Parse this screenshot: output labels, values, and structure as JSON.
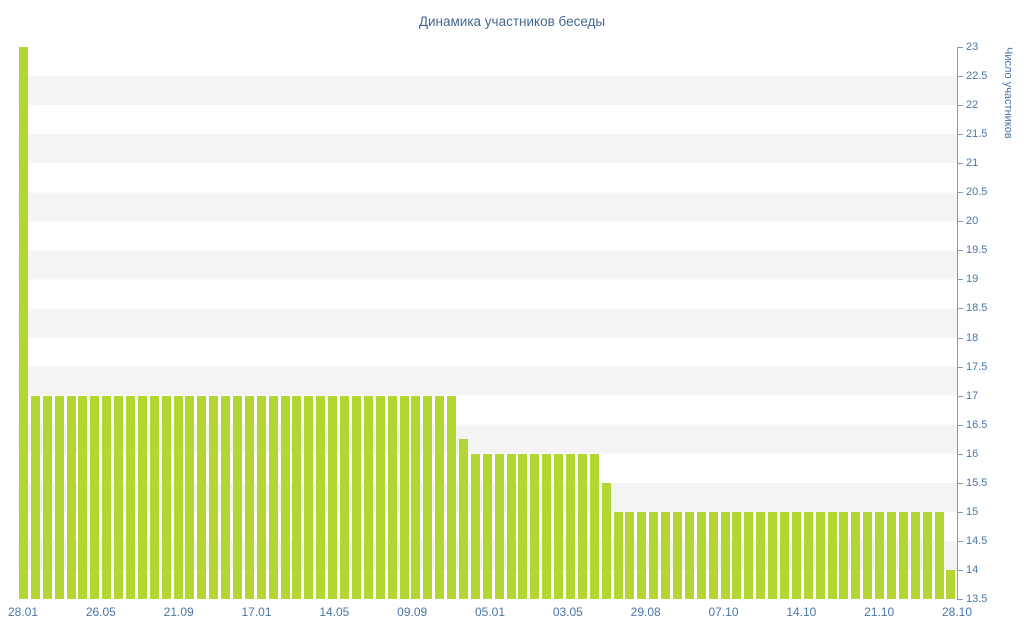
{
  "page": {
    "background": "#ffffff"
  },
  "chart_data": {
    "type": "bar",
    "title": "Динамика участников беседы",
    "ylabel": "Число участников",
    "xlabel": "",
    "legend_position": "none",
    "grid": "horizontal-stripes",
    "ylim": [
      13.5,
      23
    ],
    "y_tick_step": 0.5,
    "y_tick_labels": [
      "23",
      "22.5",
      "22",
      "21.5",
      "21",
      "20.5",
      "20",
      "19.5",
      "19",
      "18.5",
      "18",
      "17.5",
      "17",
      "16.5",
      "16",
      "15.5",
      "15",
      "14.5",
      "14",
      "13.5"
    ],
    "x_tick_labels": [
      "28.01",
      "26.05",
      "21.09",
      "17.01",
      "14.05",
      "09.09",
      "05.01",
      "03.05",
      "29.08",
      "07.10",
      "14.10",
      "21.10",
      "28.10"
    ],
    "values": [
      23,
      17,
      17,
      17,
      17,
      17,
      17,
      17,
      17,
      17,
      17,
      17,
      17,
      17,
      17,
      17,
      17,
      17,
      17,
      17,
      17,
      17,
      17,
      17,
      17,
      17,
      17,
      17,
      17,
      17,
      17,
      17,
      17,
      17,
      17,
      17,
      17,
      16.25,
      16,
      16,
      16,
      16,
      16,
      16,
      16,
      16,
      16,
      16,
      16,
      15.5,
      15,
      15,
      15,
      15,
      15,
      15,
      15,
      15,
      15,
      15,
      15,
      15,
      15,
      15,
      15,
      15,
      15,
      15,
      15,
      15,
      15,
      15,
      15,
      15,
      15,
      15,
      15,
      15,
      14
    ],
    "colors": {
      "bar": "#b2d733",
      "title": "#45688e",
      "tick_label": "#4a76a8",
      "axis_line": "#7f9db9",
      "stripe": "#f4f4f6",
      "background": "#ffffff"
    }
  }
}
